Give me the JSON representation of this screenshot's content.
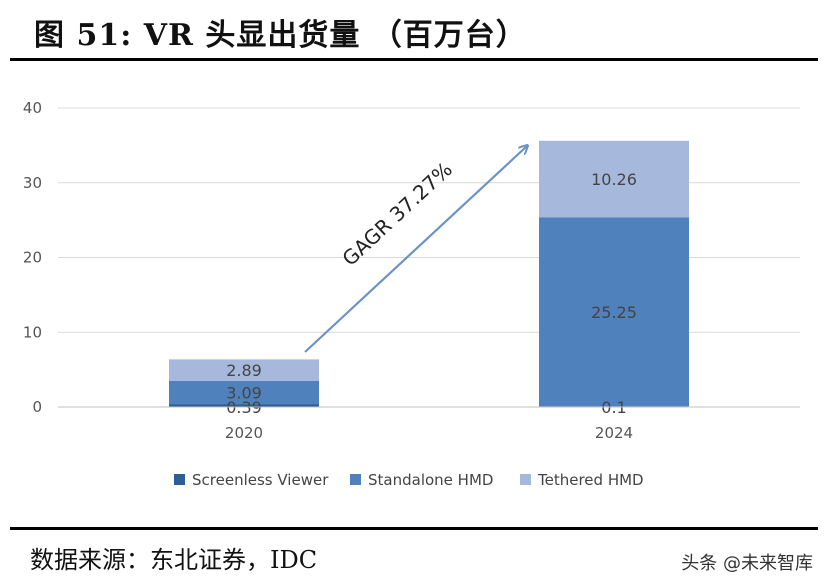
{
  "figure": {
    "title": "图 51: VR 头显出货量 （百万台）",
    "source": "数据来源：东北证券，IDC",
    "watermark": "头条 @未来智库"
  },
  "colors": {
    "screenless": "#2f5f99",
    "standalone": "#4f81bd",
    "tethered": "#a6b9dc",
    "grid": "#d9d9d9",
    "arrow": "#6b93c7"
  },
  "chart_data": {
    "type": "bar",
    "stacked": true,
    "categories": [
      "2020",
      "2024"
    ],
    "series": [
      {
        "name": "Screenless Viewer",
        "values": [
          0.39,
          0.1
        ],
        "labels": [
          "0.39",
          "0.1"
        ]
      },
      {
        "name": "Standalone HMD",
        "values": [
          3.09,
          25.25
        ],
        "labels": [
          "3.09",
          "25.25"
        ]
      },
      {
        "name": "Tethered HMD",
        "values": [
          2.89,
          10.26
        ],
        "labels": [
          "2.89",
          "10.26"
        ]
      }
    ],
    "ylim": [
      0,
      40
    ],
    "yticks": [
      0,
      10,
      20,
      30,
      40
    ],
    "ytick_labels": [
      "0",
      "10",
      "20",
      "30",
      "40"
    ],
    "annotation": "GAGR 37.27%",
    "legend_position": "bottom",
    "grid": true
  }
}
